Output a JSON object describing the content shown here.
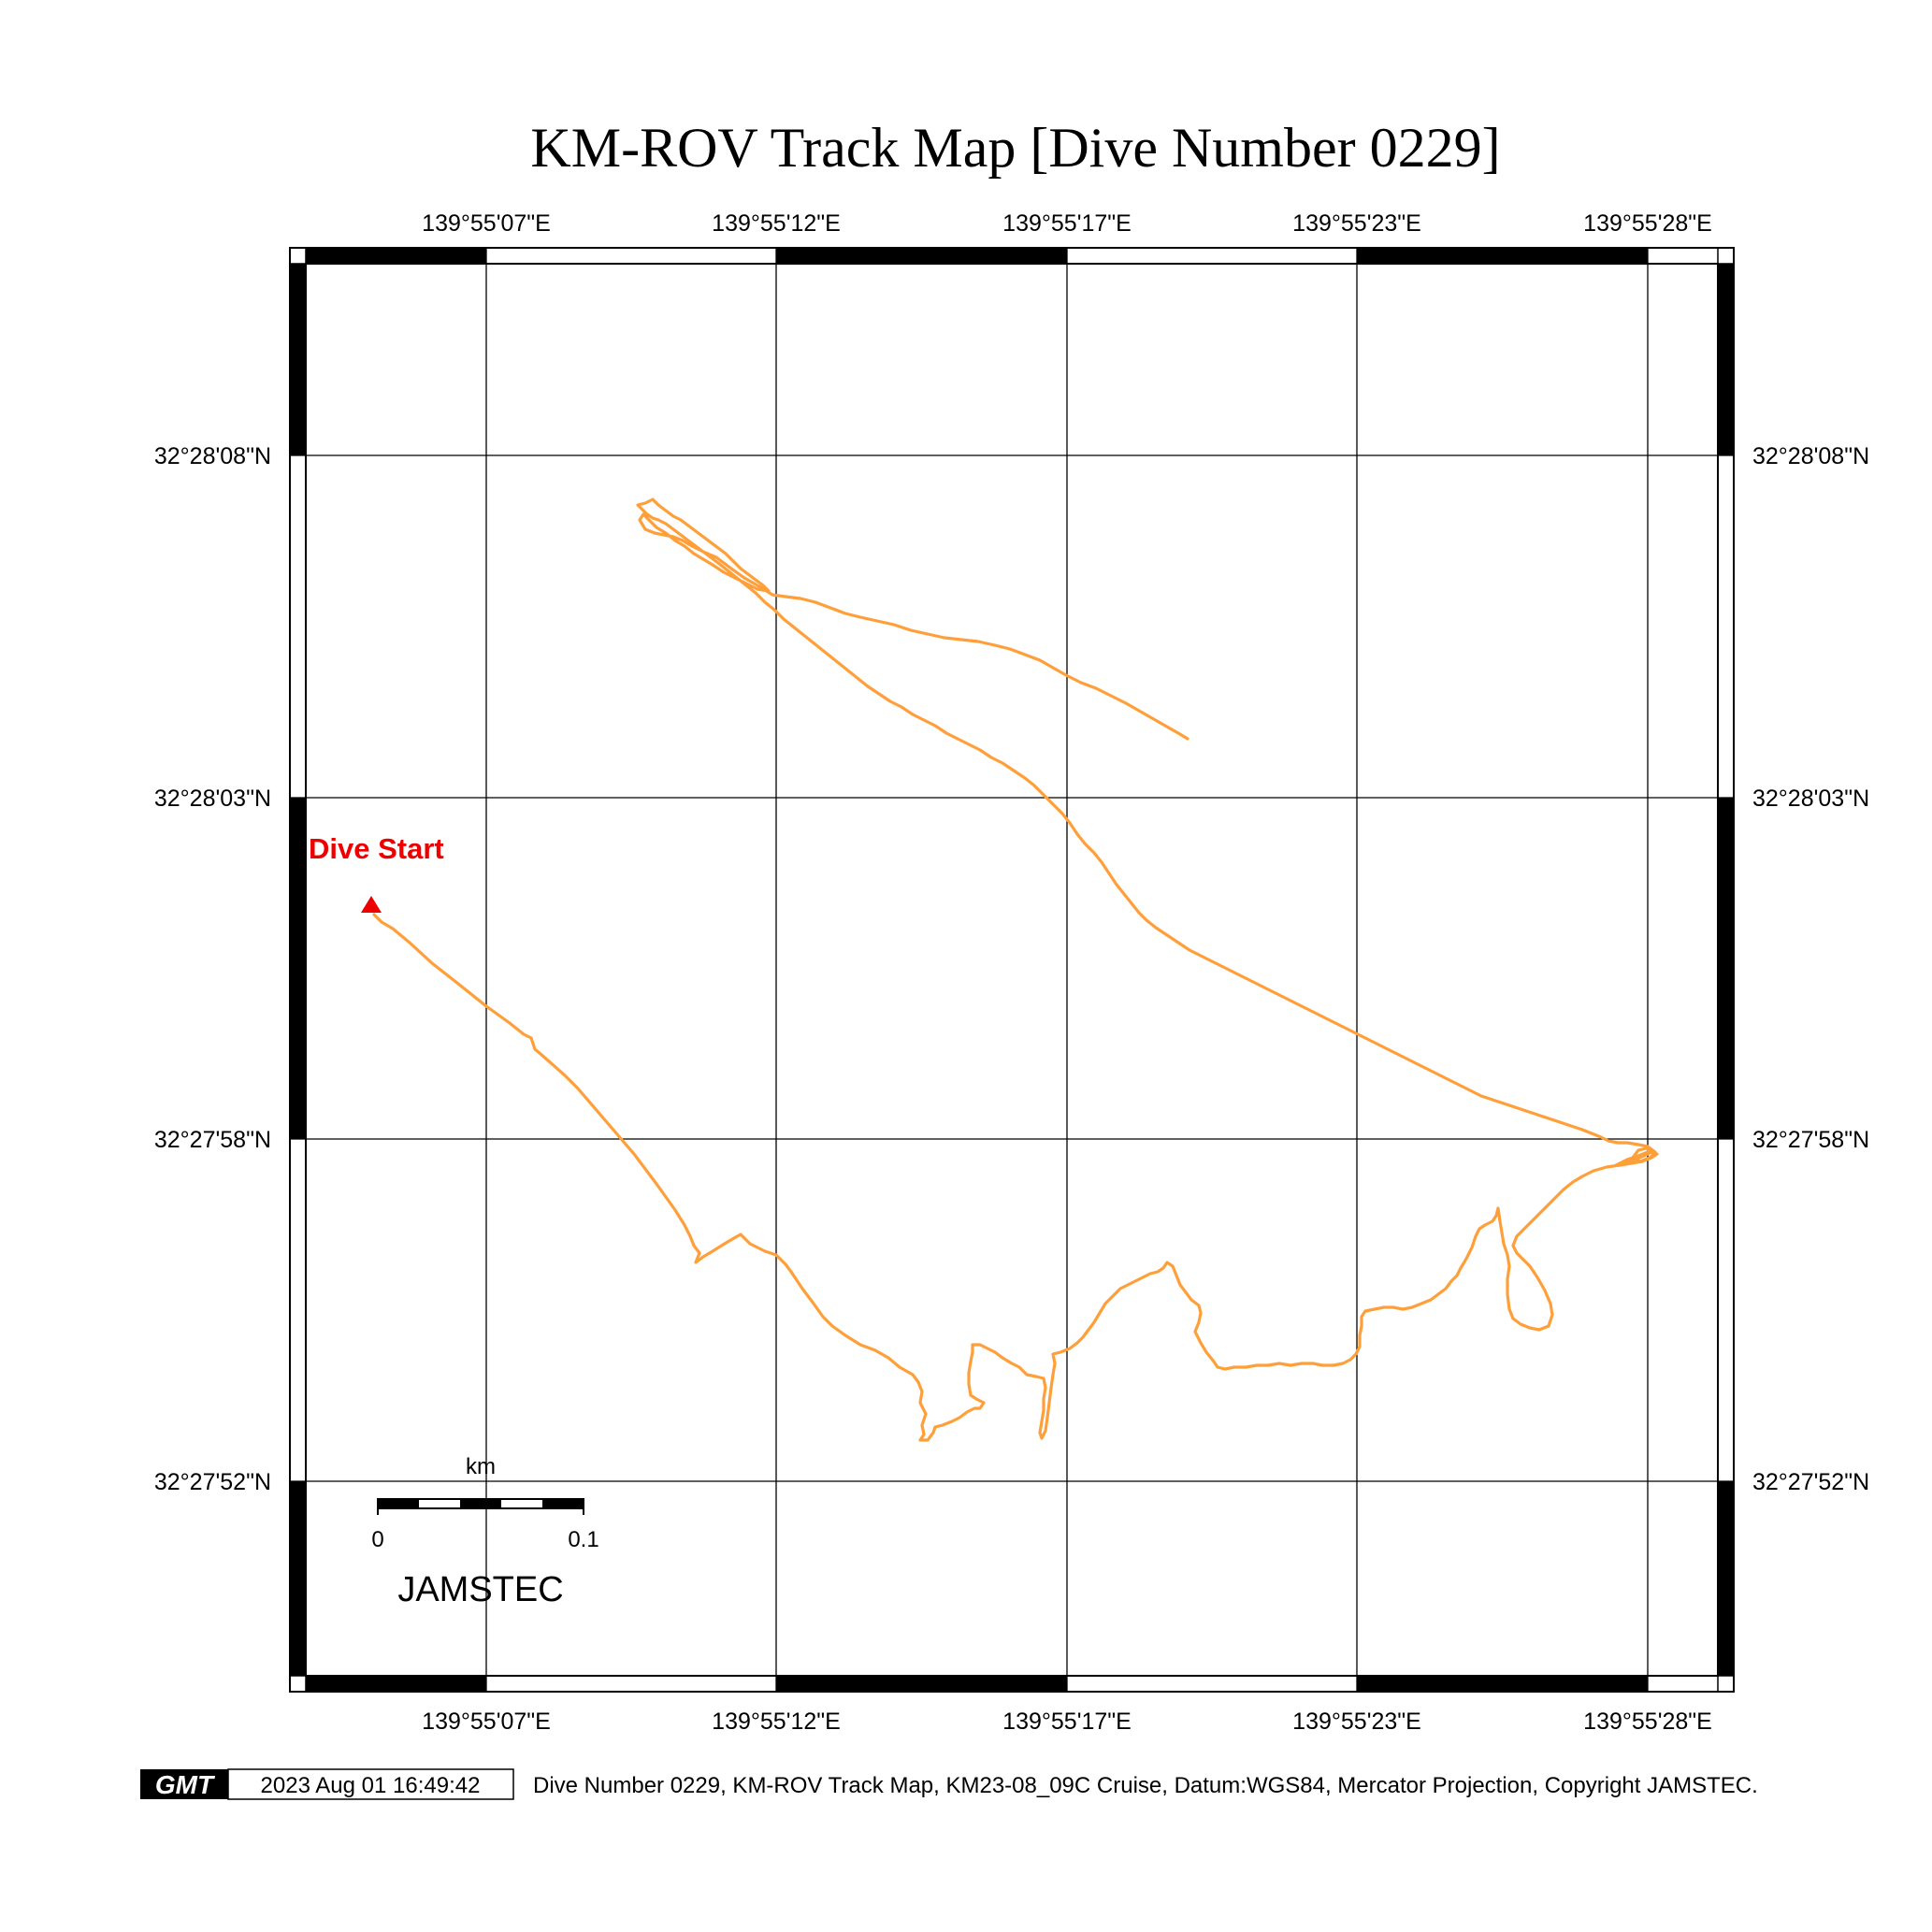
{
  "map": {
    "title": "KM-ROV Track Map [Dive Number 0229]",
    "top_labels": [
      "139°55'07\"E",
      "139°55'12\"E",
      "139°55'17\"E",
      "139°55'23\"E",
      "139°55'28\"E"
    ],
    "bottom_labels": [
      "139°55'07\"E",
      "139°55'12\"E",
      "139°55'17\"E",
      "139°55'23\"E",
      "139°55'28\"E"
    ],
    "left_labels": [
      "32°28'08\"N",
      "32°28'03\"N",
      "32°27'58\"N",
      "32°27'52\"N"
    ],
    "right_labels": [
      "32°28'08\"N",
      "32°28'03\"N",
      "32°27'58\"N",
      "32°27'52\"N"
    ],
    "start_label": "Dive Start",
    "track_color": "#ff9f3a",
    "start_color": "#ee0000",
    "scale_bar": {
      "unit": "km",
      "ticks": [
        "0",
        "0.1"
      ]
    },
    "organization": "JAMSTEC"
  },
  "footer": {
    "logo": "GMT",
    "timestamp": "2023 Aug 01 16:49:42",
    "caption": "Dive Number 0229, KM-ROV Track Map, KM23-08_09C Cruise, Datum:WGS84, Mercator Projection, Copyright JAMSTEC."
  }
}
